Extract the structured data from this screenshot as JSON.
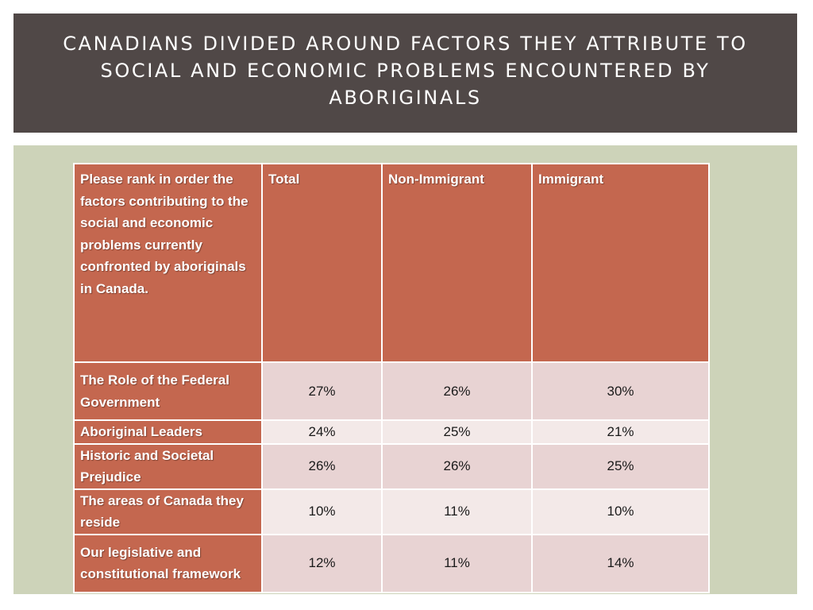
{
  "slide": {
    "title": "Canadians divided around factors they attribute to social and economic problems encountered by Aboriginals"
  },
  "table": {
    "headers": [
      "Please rank in order the factors contributing to the social and economic problems currently confronted by aboriginals in Canada.",
      "Total",
      "Non-Immigrant",
      "Immigrant"
    ],
    "rows": [
      {
        "label": "The Role of the Federal Government",
        "values": [
          "27%",
          "26%",
          "30%"
        ]
      },
      {
        "label": "Aboriginal Leaders",
        "values": [
          "24%",
          "25%",
          "21%"
        ]
      },
      {
        "label": "Historic and Societal Prejudice",
        "values": [
          "26%",
          "26%",
          "25%"
        ]
      },
      {
        "label": "The areas of Canada they reside",
        "values": [
          "10%",
          "11%",
          "10%"
        ]
      },
      {
        "label": "Our legislative and constitutional framework",
        "values": [
          "12%",
          "11%",
          "14%"
        ]
      }
    ]
  },
  "colors": {
    "title_bar": "#504847",
    "panel": "#cdd3b9",
    "header_cell": "#c4674f",
    "value_dark": "#e8d3d3",
    "value_light": "#f3e9e8"
  }
}
